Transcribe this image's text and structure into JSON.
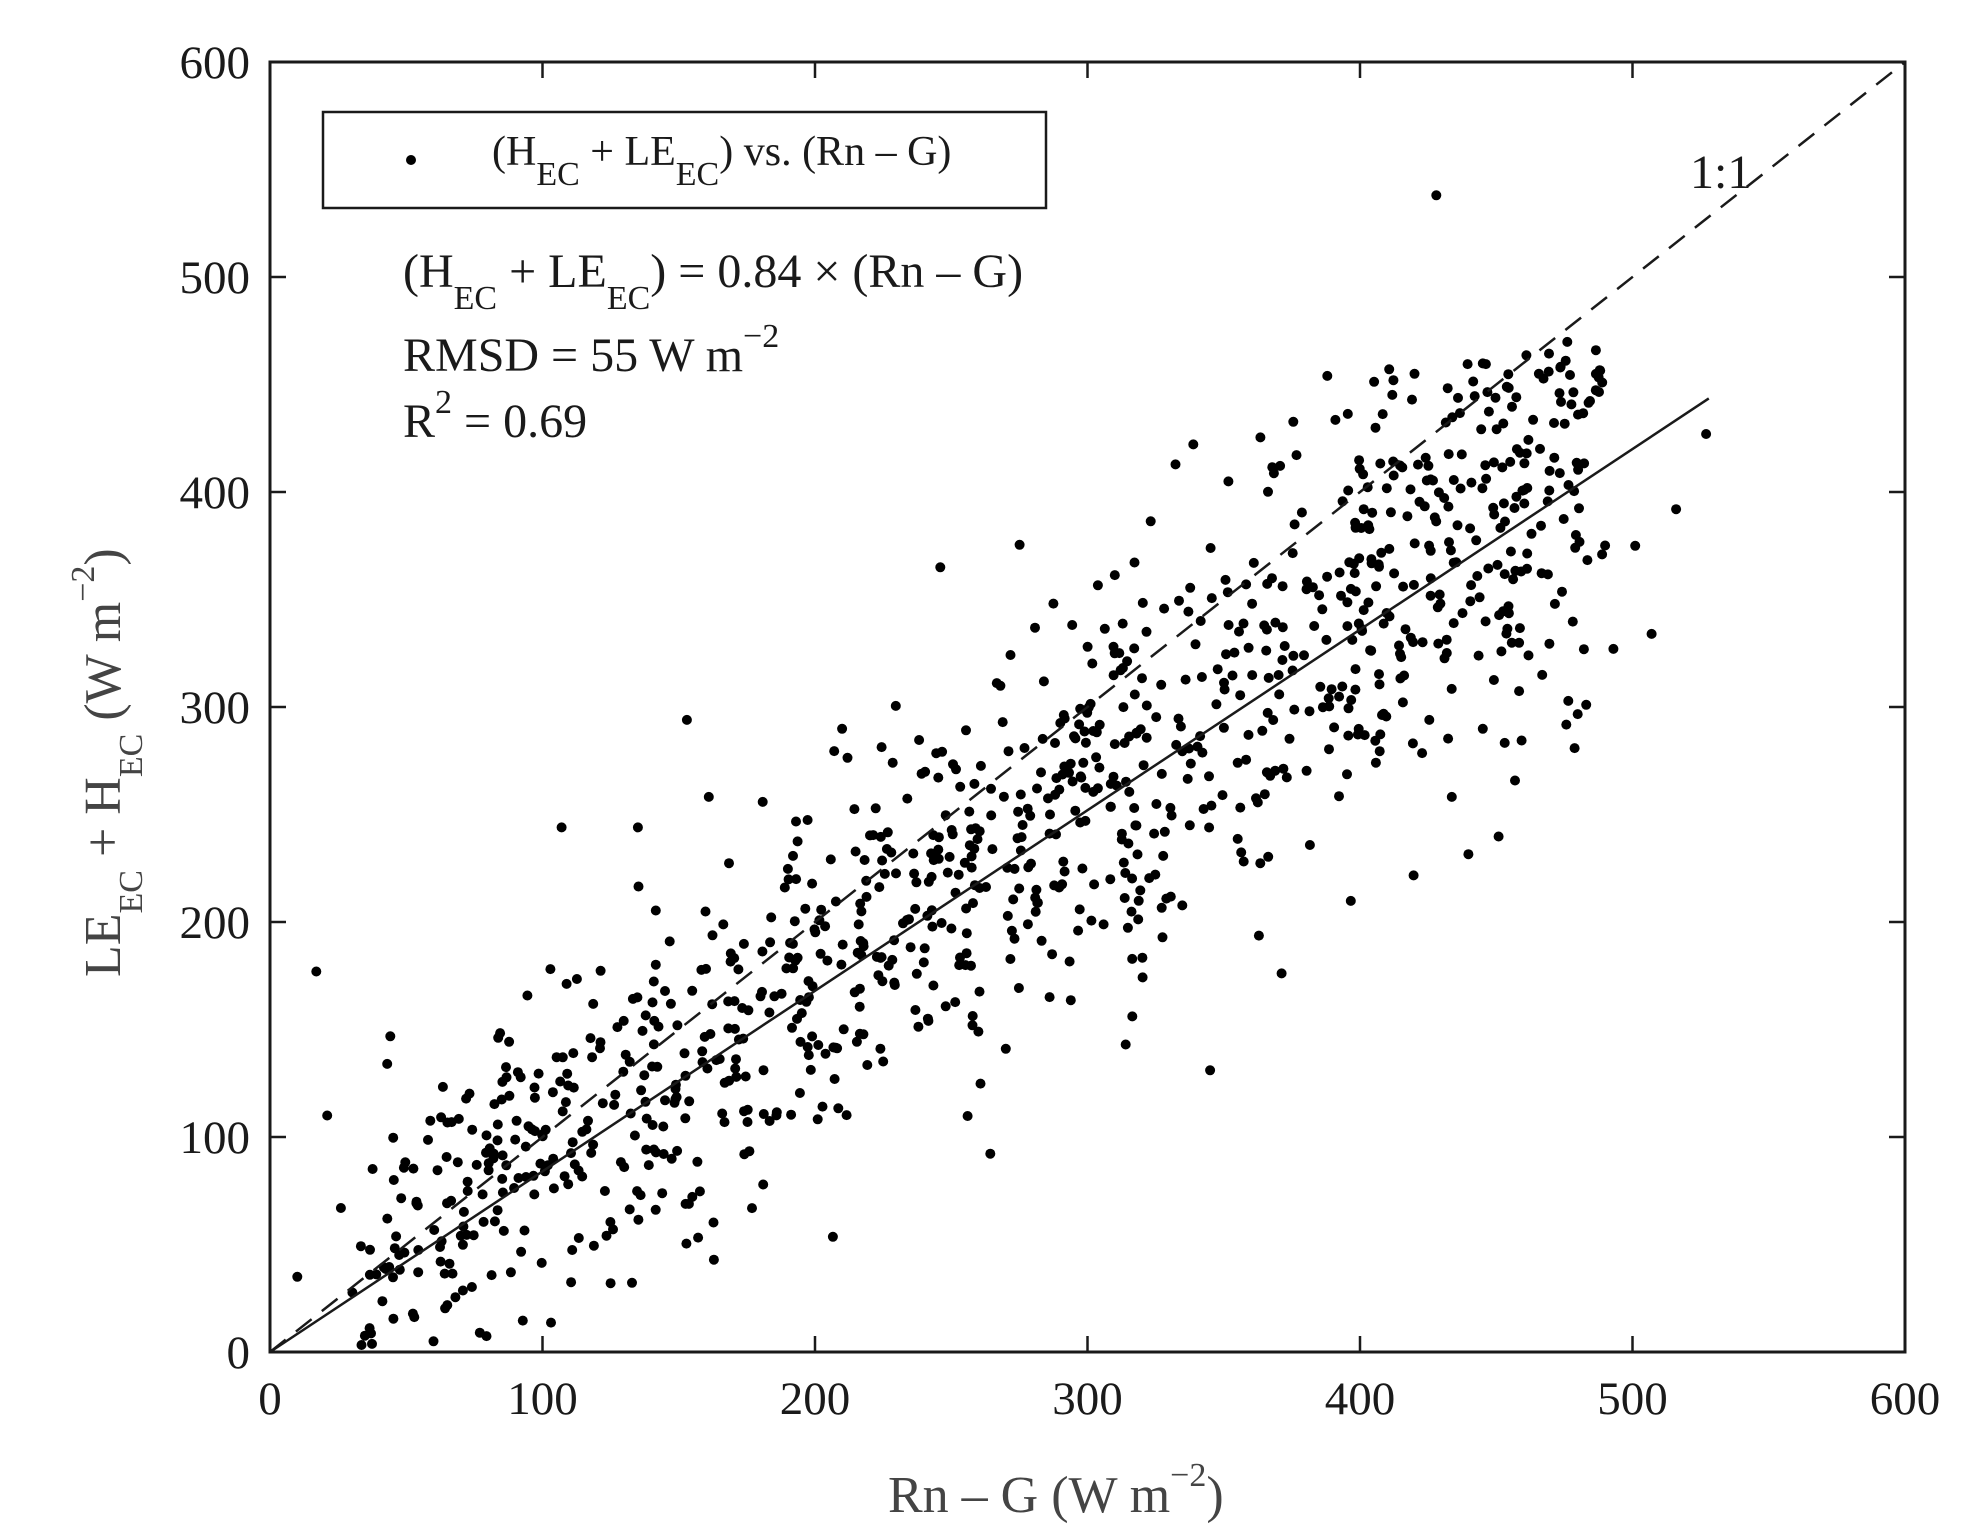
{
  "chart_data": {
    "type": "scatter",
    "title": "",
    "xlabel": {
      "main": "Rn – G (W m",
      "sup": "−2",
      "tail": ")"
    },
    "ylabel": {
      "p1": "LE",
      "s1": "EC",
      "p2": " + H",
      "s2": "EC",
      "p3": " (W m",
      "sup": "−2",
      "p4": ")"
    },
    "xlim": [
      0,
      600
    ],
    "ylim": [
      0,
      600
    ],
    "xticks": [
      "0",
      "100",
      "200",
      "300",
      "400",
      "500",
      "600"
    ],
    "yticks": [
      "0",
      "100",
      "200",
      "300",
      "400",
      "500",
      "600"
    ],
    "grid": false,
    "legend": {
      "position": "top-left",
      "entry": {
        "p1": "(H",
        "s1": "EC",
        "p2": " + LE",
        "s2": "EC",
        "p3": ") vs. (Rn – G)"
      }
    },
    "reference_line": {
      "label": "1:1",
      "slope": 1,
      "style": "dashed"
    },
    "fit_line": {
      "slope": 0.84,
      "x_range": [
        0,
        528
      ],
      "style": "solid"
    },
    "annotations": {
      "equation": {
        "p1": "(H",
        "s1": "EC",
        "p2": " + LE",
        "s2": "EC",
        "p3": ") = 0.84 × (Rn – G)"
      },
      "rmsd": {
        "main": "RMSD = 55 W m",
        "sup": "−2"
      },
      "r2": {
        "main": "R",
        "sup": "2",
        "tail": " = 0.69"
      }
    },
    "series": [
      {
        "marker": "dot",
        "color": "#000000",
        "outliers": [
          [
            17,
            177
          ],
          [
            428,
            538
          ],
          [
            107,
            244
          ],
          [
            135,
            244
          ],
          [
            153,
            294
          ],
          [
            246,
            365
          ],
          [
            270,
            141
          ],
          [
            314,
            143
          ],
          [
            345,
            131
          ],
          [
            527,
            427
          ],
          [
            516,
            392
          ],
          [
            501,
            375
          ],
          [
            507,
            334
          ],
          [
            493,
            327
          ],
          [
            483,
            301
          ],
          [
            480,
            436
          ],
          [
            420,
            455
          ],
          [
            388,
            454
          ],
          [
            60,
            5
          ],
          [
            10,
            35
          ],
          [
            125,
            32
          ],
          [
            43,
            134
          ],
          [
            26,
            67
          ],
          [
            21,
            110
          ],
          [
            77,
            9
          ]
        ],
        "generator": {
          "count": 1050,
          "x_min": 30,
          "x_max": 490,
          "slope": 0.84,
          "intercept": 8,
          "noise_sd": 52,
          "seed": 20240611
        }
      }
    ]
  }
}
